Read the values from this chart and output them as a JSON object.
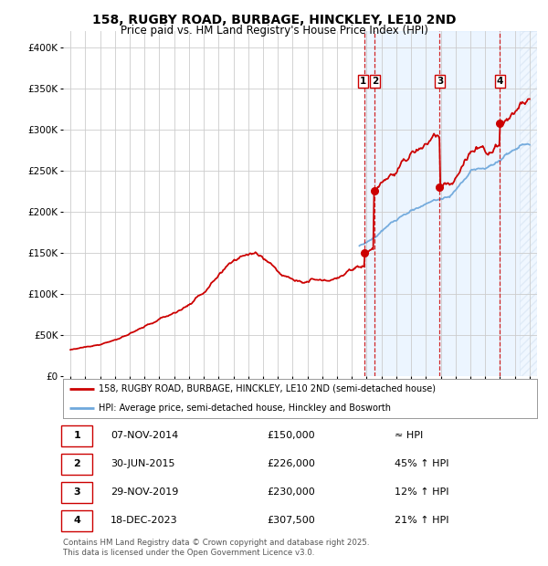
{
  "title": "158, RUGBY ROAD, BURBAGE, HINCKLEY, LE10 2ND",
  "subtitle": "Price paid vs. HM Land Registry's House Price Index (HPI)",
  "legend_line1": "158, RUGBY ROAD, BURBAGE, HINCKLEY, LE10 2ND (semi-detached house)",
  "legend_line2": "HPI: Average price, semi-detached house, Hinckley and Bosworth",
  "footer": "Contains HM Land Registry data © Crown copyright and database right 2025.\nThis data is licensed under the Open Government Licence v3.0.",
  "hpi_color": "#6fa8dc",
  "price_color": "#cc0000",
  "background_shaded_color": "#ddeeff",
  "grid_color": "#cccccc",
  "ylim": [
    0,
    420000
  ],
  "yticks": [
    0,
    50000,
    100000,
    150000,
    200000,
    250000,
    300000,
    350000,
    400000
  ],
  "xlim_start": 1994.5,
  "xlim_end": 2026.5,
  "hpi_start_year": 2014.5,
  "transactions": [
    {
      "num": 1,
      "date_label": "07-NOV-2014",
      "date_x": 2014.854,
      "price": 150000,
      "note": "≈ HPI"
    },
    {
      "num": 2,
      "date_label": "30-JUN-2015",
      "date_x": 2015.496,
      "price": 226000,
      "note": "45% ↑ HPI"
    },
    {
      "num": 3,
      "date_label": "29-NOV-2019",
      "date_x": 2019.912,
      "price": 230000,
      "note": "12% ↑ HPI"
    },
    {
      "num": 4,
      "date_label": "18-DEC-2023",
      "date_x": 2023.962,
      "price": 307500,
      "note": "21% ↑ HPI"
    }
  ]
}
